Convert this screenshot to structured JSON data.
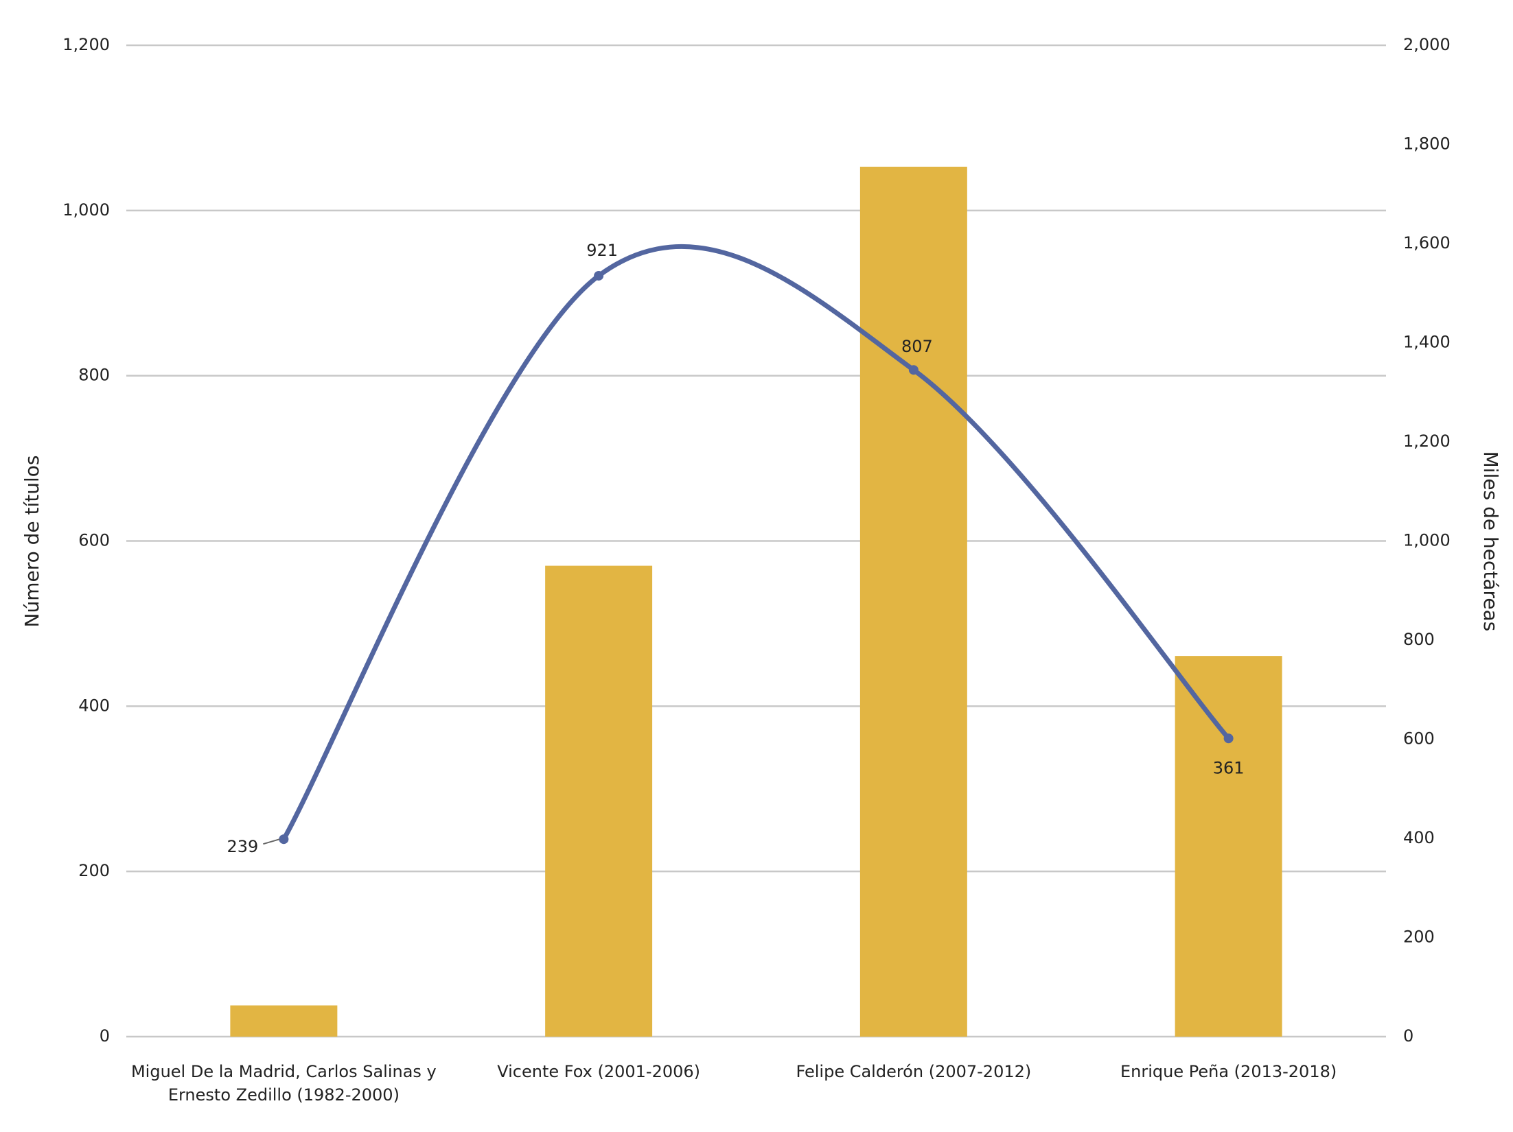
{
  "chart_data": {
    "type": "bar-line",
    "categories": [
      "Miguel De la Madrid, Carlos Salinas y Ernesto Zedillo (1982-2000)",
      "Vicente Fox (2001-2006)",
      "Felipe Calderón (2007-2012)",
      "Enrique Peña (2013-2018)"
    ],
    "y_label": "Número de títulos",
    "y2_label": "Miles de hectáreas",
    "ylim": [
      0,
      1200
    ],
    "yticks": [
      0,
      200,
      400,
      600,
      800,
      {
        "value": 1000,
        "label": "1,000"
      },
      {
        "value": 1200,
        "label": "1,200"
      }
    ],
    "y2lim": [
      0,
      2000
    ],
    "y2ticks": [
      0,
      200,
      400,
      600,
      800,
      {
        "value": 1000,
        "label": "1,000"
      },
      {
        "value": 1200,
        "label": "1,200"
      },
      {
        "value": 1400,
        "label": "1,400"
      },
      {
        "value": 1600,
        "label": "1,600"
      },
      {
        "value": 1800,
        "label": "1,800"
      },
      {
        "value": 2000,
        "label": "2,000"
      }
    ],
    "grid": true,
    "series": [
      {
        "type": "bar",
        "axis": "y2",
        "color": "#e2b543",
        "values": [
          63,
          950,
          1755,
          768
        ]
      },
      {
        "type": "line",
        "axis": "y",
        "color": "#5366a0",
        "values": [
          239,
          921,
          807,
          361
        ]
      }
    ]
  }
}
